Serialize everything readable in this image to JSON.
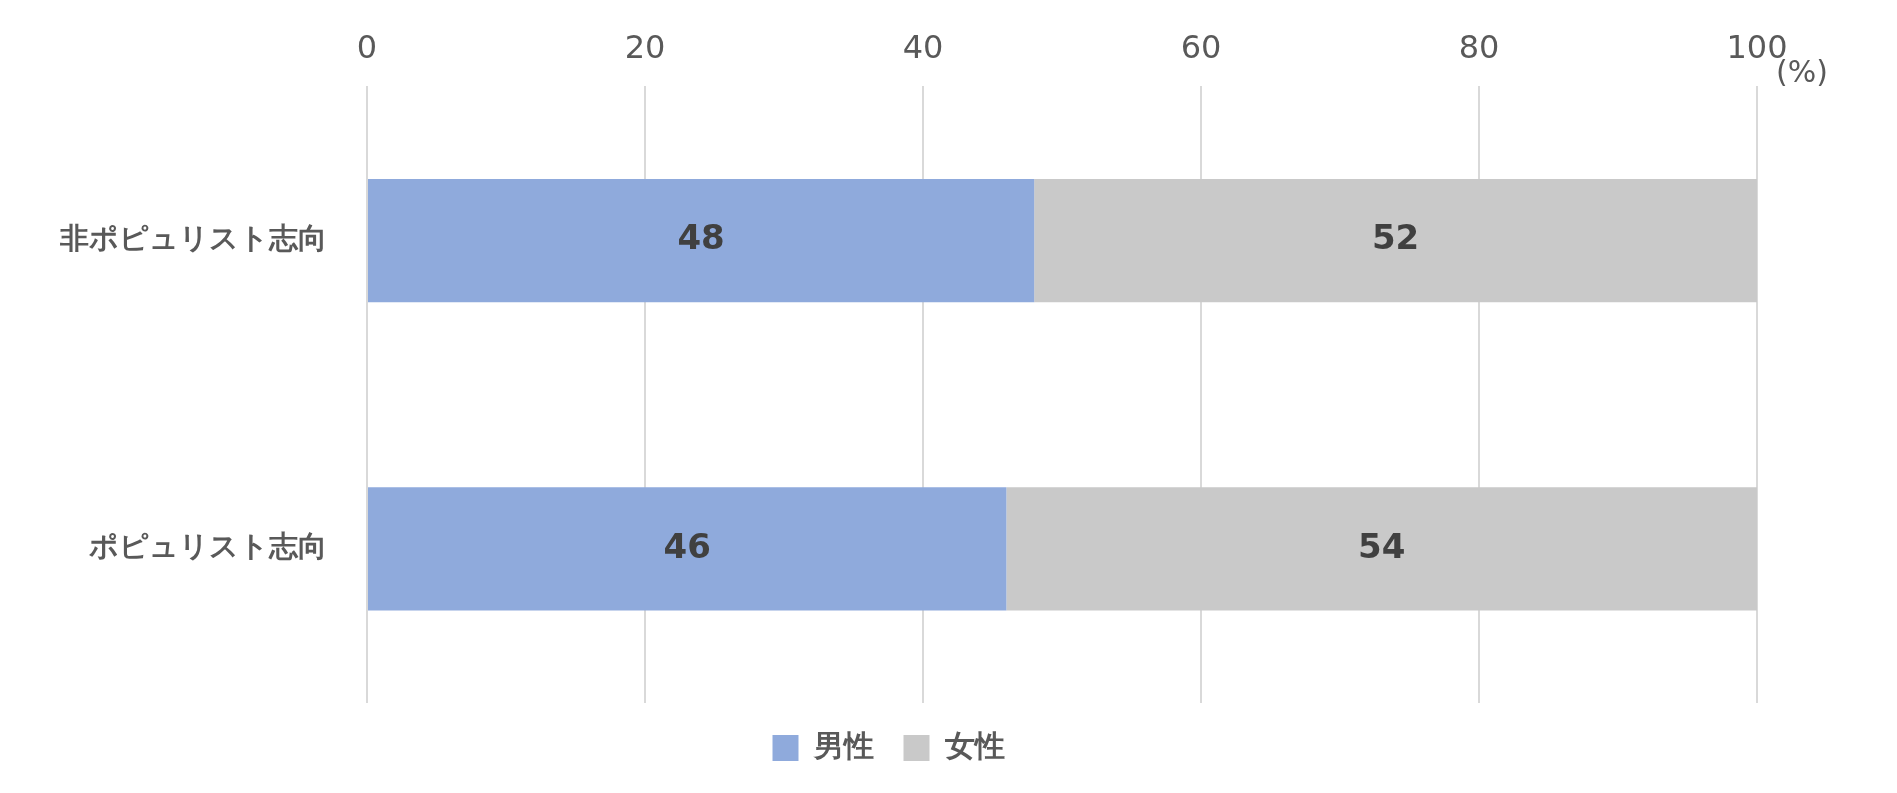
{
  "chart_data": {
    "type": "bar",
    "orientation": "horizontal",
    "stacked": true,
    "categories": [
      "非ポピュリスト志向",
      "ポピュリスト志向"
    ],
    "series": [
      {
        "name": "男性",
        "color": "#8faadc",
        "values": [
          48,
          46
        ]
      },
      {
        "name": "女性",
        "color": "#c9c9c9",
        "values": [
          52,
          54
        ]
      }
    ],
    "xlim": [
      0,
      100
    ],
    "xticks": [
      0,
      20,
      40,
      60,
      80,
      100
    ],
    "xlabel": "(%)",
    "grid": "x",
    "legend": "bottom",
    "data_labels": true
  }
}
